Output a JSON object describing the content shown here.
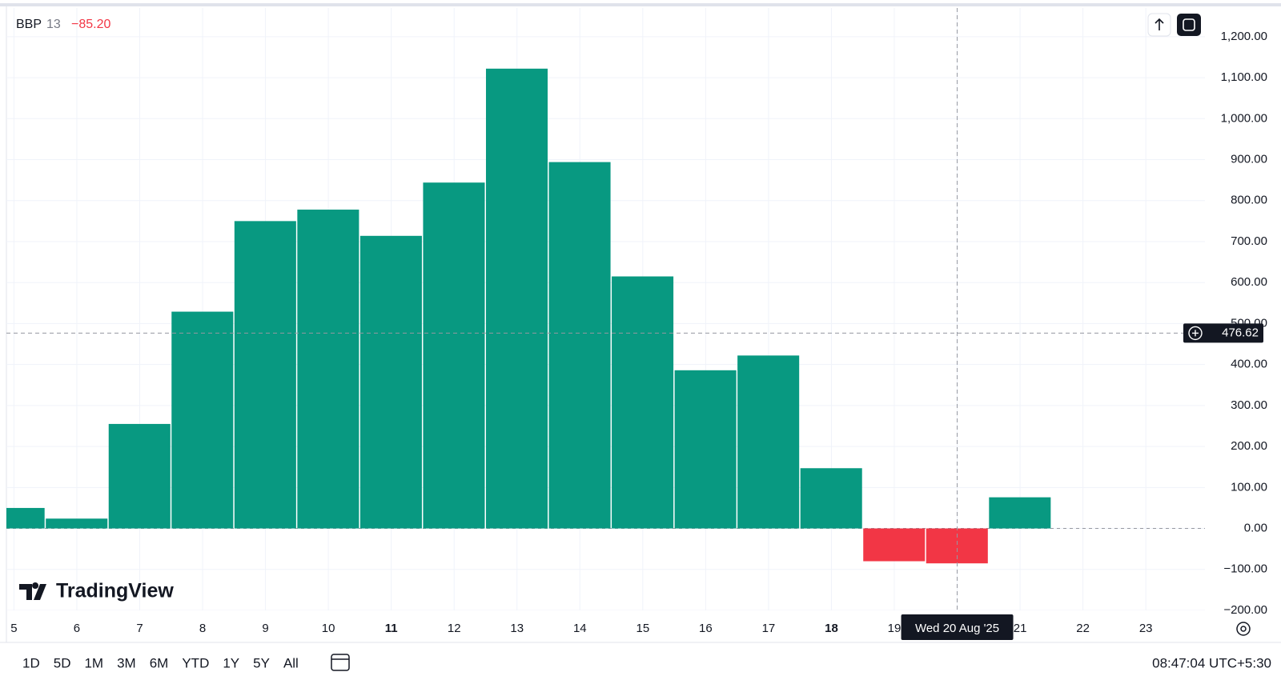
{
  "chart_data": {
    "type": "bar",
    "legend": {
      "symbol": "BBP",
      "length": "13",
      "value": "−85.20"
    },
    "x": [
      5,
      6,
      7,
      8,
      9,
      10,
      11,
      12,
      13,
      14,
      15,
      16,
      17,
      18,
      19,
      20,
      21
    ],
    "values": [
      50,
      24,
      255,
      529,
      750,
      778,
      714,
      844,
      1122,
      894,
      615,
      386,
      422,
      147,
      -80,
      -85.2,
      76
    ],
    "colors": {
      "up": "#089981",
      "down": "#f23645"
    },
    "xlim": [
      4.88,
      23.94
    ],
    "xticks": [
      5,
      6,
      7,
      8,
      9,
      10,
      11,
      12,
      13,
      14,
      15,
      16,
      17,
      18,
      19,
      20,
      21,
      22,
      23
    ],
    "bold_xticks": [
      11,
      18
    ],
    "ylim": [
      -200,
      1270
    ],
    "yticks": [
      {
        "value": -200,
        "label": "−200.00"
      },
      {
        "value": -100,
        "label": "−100.00"
      },
      {
        "value": 0,
        "label": "0.00"
      },
      {
        "value": 100,
        "label": "100.00"
      },
      {
        "value": 200,
        "label": "200.00"
      },
      {
        "value": 300,
        "label": "300.00"
      },
      {
        "value": 400,
        "label": "400.00"
      },
      {
        "value": 500,
        "label": "500.00"
      },
      {
        "value": 600,
        "label": "600.00"
      },
      {
        "value": 700,
        "label": "700.00"
      },
      {
        "value": 800,
        "label": "800.00"
      },
      {
        "value": 900,
        "label": "900.00"
      },
      {
        "value": 1000,
        "label": "1,000.00"
      },
      {
        "value": 1100,
        "label": "1,100.00"
      },
      {
        "value": 1200,
        "label": "1,200.00"
      }
    ],
    "grid": true,
    "crosshair": {
      "x": 20,
      "y": 476.62,
      "x_label": "Wed 20 Aug '25"
    },
    "logo": "TradingView",
    "ranges": [
      "1D",
      "5D",
      "1M",
      "3M",
      "6M",
      "YTD",
      "1Y",
      "5Y",
      "All"
    ],
    "clock": "08:47:04 UTC+5:30"
  }
}
